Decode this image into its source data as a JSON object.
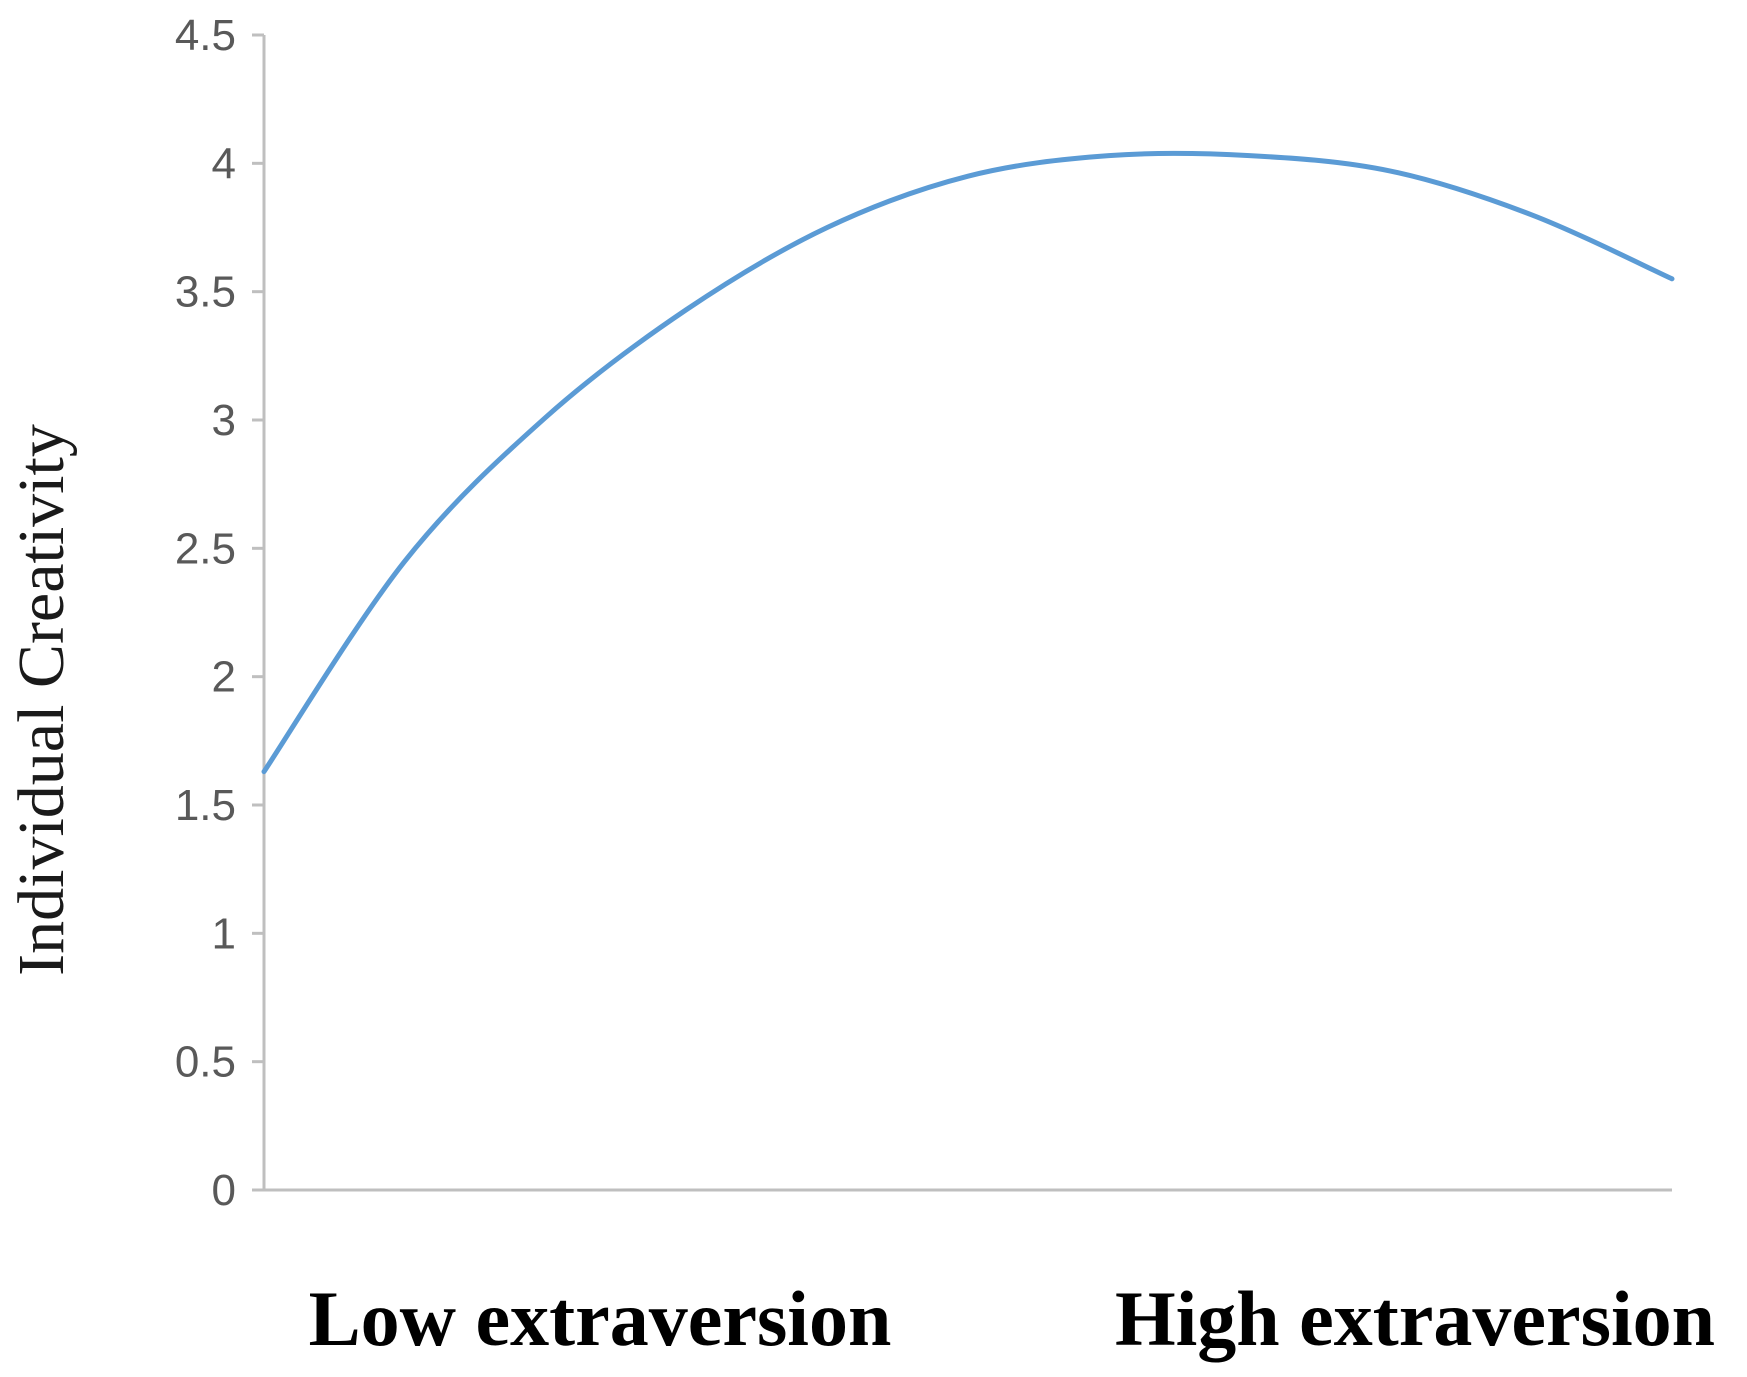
{
  "chart_data": {
    "type": "line",
    "title": "",
    "ylabel": "Individual Creativity",
    "xlabel": "",
    "categories": [
      "Low extraversion",
      "High extraversion"
    ],
    "yticks": [
      "0",
      "0.5",
      "1",
      "1.5",
      "2",
      "2.5",
      "3",
      "3.5",
      "4",
      "4.5"
    ],
    "ylim": [
      0,
      4.5
    ],
    "xlim": [
      0,
      1
    ],
    "grid": false,
    "line_color": "#5b9bd5",
    "axis_color": "#bfbfbf",
    "series": [
      {
        "x": [
          0.0,
          0.1,
          0.2,
          0.3,
          0.4,
          0.5,
          0.6,
          0.7,
          0.8,
          0.9,
          1.0
        ],
        "values": [
          1.63,
          2.45,
          3.01,
          3.43,
          3.75,
          3.95,
          4.03,
          4.03,
          3.97,
          3.8,
          3.55
        ]
      }
    ]
  }
}
